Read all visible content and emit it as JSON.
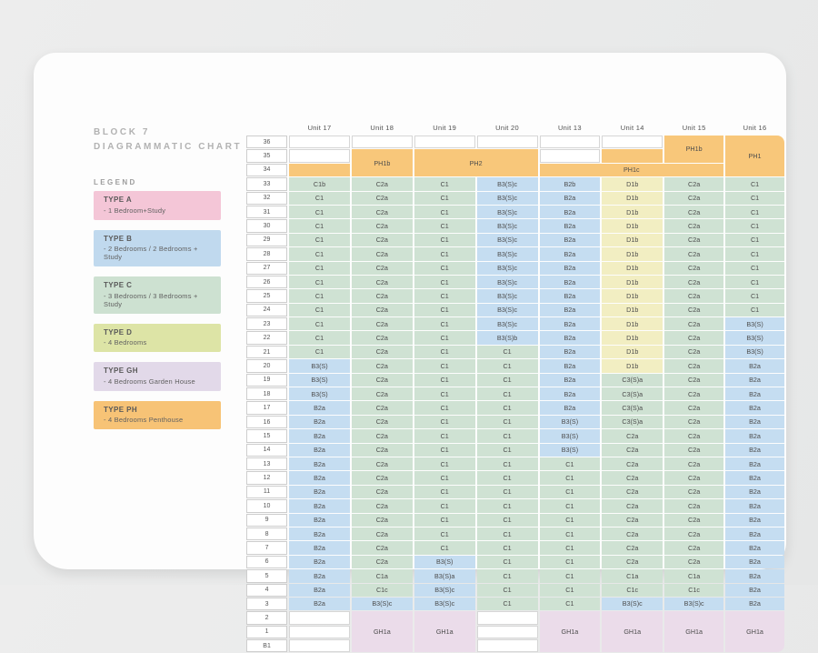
{
  "page": {
    "title_line1": "BLOCK 7",
    "title_line2": "DIAGRAMMATIC CHART"
  },
  "legend": {
    "heading": "LEGEND",
    "items": [
      {
        "title": "TYPE A",
        "desc": "- 1 Bedroom+Study",
        "color": "#f4c6d7"
      },
      {
        "title": "TYPE B",
        "desc": "- 2 Bedrooms / 2 Bedrooms + Study",
        "color": "#c0d9ee"
      },
      {
        "title": "TYPE C",
        "desc": "- 3 Bedrooms / 3 Bedrooms + Study",
        "color": "#cde1d1"
      },
      {
        "title": "TYPE D",
        "desc": "- 4 Bedrooms",
        "color": "#dde4a6"
      },
      {
        "title": "TYPE GH",
        "desc": "- 4 Bedrooms Garden House",
        "color": "#e2d9e9"
      },
      {
        "title": "TYPE PH",
        "desc": "- 4 Bedrooms Penthouse",
        "color": "#f7c376"
      }
    ]
  },
  "table": {
    "unit_headers": [
      "Unit 17",
      "Unit 18",
      "Unit 19",
      "Unit 20",
      "Unit 13",
      "Unit 14",
      "Unit 15",
      "Unit 16"
    ],
    "top_row_labels": [
      "36",
      "35",
      "34"
    ],
    "bottom_row_labels": [
      "2",
      "1",
      "B1"
    ],
    "penthouse_labels": {
      "ph1b_left": "PH1b",
      "ph2": "PH2",
      "ph1c": "PH1c",
      "ph1b_right": "PH1b",
      "ph1": "PH1"
    },
    "garden_label": "GH1a",
    "floors": [
      {
        "floor": "33",
        "cells": [
          "C1b",
          "C2a",
          "C1",
          "B3(S)c",
          "B2b",
          "D1b",
          "C2a",
          "C1"
        ]
      },
      {
        "floor": "32",
        "cells": [
          "C1",
          "C2a",
          "C1",
          "B3(S)c",
          "B2a",
          "D1b",
          "C2a",
          "C1"
        ]
      },
      {
        "floor": "31",
        "cells": [
          "C1",
          "C2a",
          "C1",
          "B3(S)c",
          "B2a",
          "D1b",
          "C2a",
          "C1"
        ]
      },
      {
        "floor": "30",
        "cells": [
          "C1",
          "C2a",
          "C1",
          "B3(S)c",
          "B2a",
          "D1b",
          "C2a",
          "C1"
        ]
      },
      {
        "floor": "29",
        "cells": [
          "C1",
          "C2a",
          "C1",
          "B3(S)c",
          "B2a",
          "D1b",
          "C2a",
          "C1"
        ]
      },
      {
        "floor": "28",
        "cells": [
          "C1",
          "C2a",
          "C1",
          "B3(S)c",
          "B2a",
          "D1b",
          "C2a",
          "C1"
        ]
      },
      {
        "floor": "27",
        "cells": [
          "C1",
          "C2a",
          "C1",
          "B3(S)c",
          "B2a",
          "D1b",
          "C2a",
          "C1"
        ]
      },
      {
        "floor": "26",
        "cells": [
          "C1",
          "C2a",
          "C1",
          "B3(S)c",
          "B2a",
          "D1b",
          "C2a",
          "C1"
        ]
      },
      {
        "floor": "25",
        "cells": [
          "C1",
          "C2a",
          "C1",
          "B3(S)c",
          "B2a",
          "D1b",
          "C2a",
          "C1"
        ]
      },
      {
        "floor": "24",
        "cells": [
          "C1",
          "C2a",
          "C1",
          "B3(S)c",
          "B2a",
          "D1b",
          "C2a",
          "C1"
        ]
      },
      {
        "floor": "23",
        "cells": [
          "C1",
          "C2a",
          "C1",
          "B3(S)c",
          "B2a",
          "D1b",
          "C2a",
          "B3(S)"
        ]
      },
      {
        "floor": "22",
        "cells": [
          "C1",
          "C2a",
          "C1",
          "B3(S)b",
          "B2a",
          "D1b",
          "C2a",
          "B3(S)"
        ]
      },
      {
        "floor": "21",
        "cells": [
          "C1",
          "C2a",
          "C1",
          "C1",
          "B2a",
          "D1b",
          "C2a",
          "B3(S)"
        ]
      },
      {
        "floor": "20",
        "cells": [
          "B3(S)",
          "C2a",
          "C1",
          "C1",
          "B2a",
          "D1b",
          "C2a",
          "B2a"
        ]
      },
      {
        "floor": "19",
        "cells": [
          "B3(S)",
          "C2a",
          "C1",
          "C1",
          "B2a",
          "C3(S)a",
          "C2a",
          "B2a"
        ]
      },
      {
        "floor": "18",
        "cells": [
          "B3(S)",
          "C2a",
          "C1",
          "C1",
          "B2a",
          "C3(S)a",
          "C2a",
          "B2a"
        ]
      },
      {
        "floor": "17",
        "cells": [
          "B2a",
          "C2a",
          "C1",
          "C1",
          "B2a",
          "C3(S)a",
          "C2a",
          "B2a"
        ]
      },
      {
        "floor": "16",
        "cells": [
          "B2a",
          "C2a",
          "C1",
          "C1",
          "B3(S)",
          "C3(S)a",
          "C2a",
          "B2a"
        ]
      },
      {
        "floor": "15",
        "cells": [
          "B2a",
          "C2a",
          "C1",
          "C1",
          "B3(S)",
          "C2a",
          "C2a",
          "B2a"
        ]
      },
      {
        "floor": "14",
        "cells": [
          "B2a",
          "C2a",
          "C1",
          "C1",
          "B3(S)",
          "C2a",
          "C2a",
          "B2a"
        ]
      },
      {
        "floor": "13",
        "cells": [
          "B2a",
          "C2a",
          "C1",
          "C1",
          "C1",
          "C2a",
          "C2a",
          "B2a"
        ]
      },
      {
        "floor": "12",
        "cells": [
          "B2a",
          "C2a",
          "C1",
          "C1",
          "C1",
          "C2a",
          "C2a",
          "B2a"
        ]
      },
      {
        "floor": "11",
        "cells": [
          "B2a",
          "C2a",
          "C1",
          "C1",
          "C1",
          "C2a",
          "C2a",
          "B2a"
        ]
      },
      {
        "floor": "10",
        "cells": [
          "B2a",
          "C2a",
          "C1",
          "C1",
          "C1",
          "C2a",
          "C2a",
          "B2a"
        ]
      },
      {
        "floor": "9",
        "cells": [
          "B2a",
          "C2a",
          "C1",
          "C1",
          "C1",
          "C2a",
          "C2a",
          "B2a"
        ]
      },
      {
        "floor": "8",
        "cells": [
          "B2a",
          "C2a",
          "C1",
          "C1",
          "C1",
          "C2a",
          "C2a",
          "B2a"
        ]
      },
      {
        "floor": "7",
        "cells": [
          "B2a",
          "C2a",
          "C1",
          "C1",
          "C1",
          "C2a",
          "C2a",
          "B2a"
        ]
      },
      {
        "floor": "6",
        "cells": [
          "B2a",
          "C2a",
          "B3(S)",
          "C1",
          "C1",
          "C2a",
          "C2a",
          "B2a"
        ]
      },
      {
        "floor": "5",
        "cells": [
          "B2a",
          "C1a",
          "B3(S)a",
          "C1",
          "C1",
          "C1a",
          "C1a",
          "B2a"
        ]
      },
      {
        "floor": "4",
        "cells": [
          "B2a",
          "C1c",
          "B3(S)c",
          "C1",
          "C1",
          "C1c",
          "C1c",
          "B2a"
        ]
      },
      {
        "floor": "3",
        "cells": [
          "B2a",
          "B3(S)c",
          "B3(S)c",
          "C1",
          "C1",
          "B3(S)c",
          "B3(S)c",
          "B2a"
        ]
      }
    ]
  },
  "colors": {
    "cell_b": "#c5ddf1",
    "cell_c": "#cfe2d3",
    "cell_d": "#f2eec2",
    "cell_gh": "#ebdcea",
    "cell_ph": "#f8c77a"
  }
}
